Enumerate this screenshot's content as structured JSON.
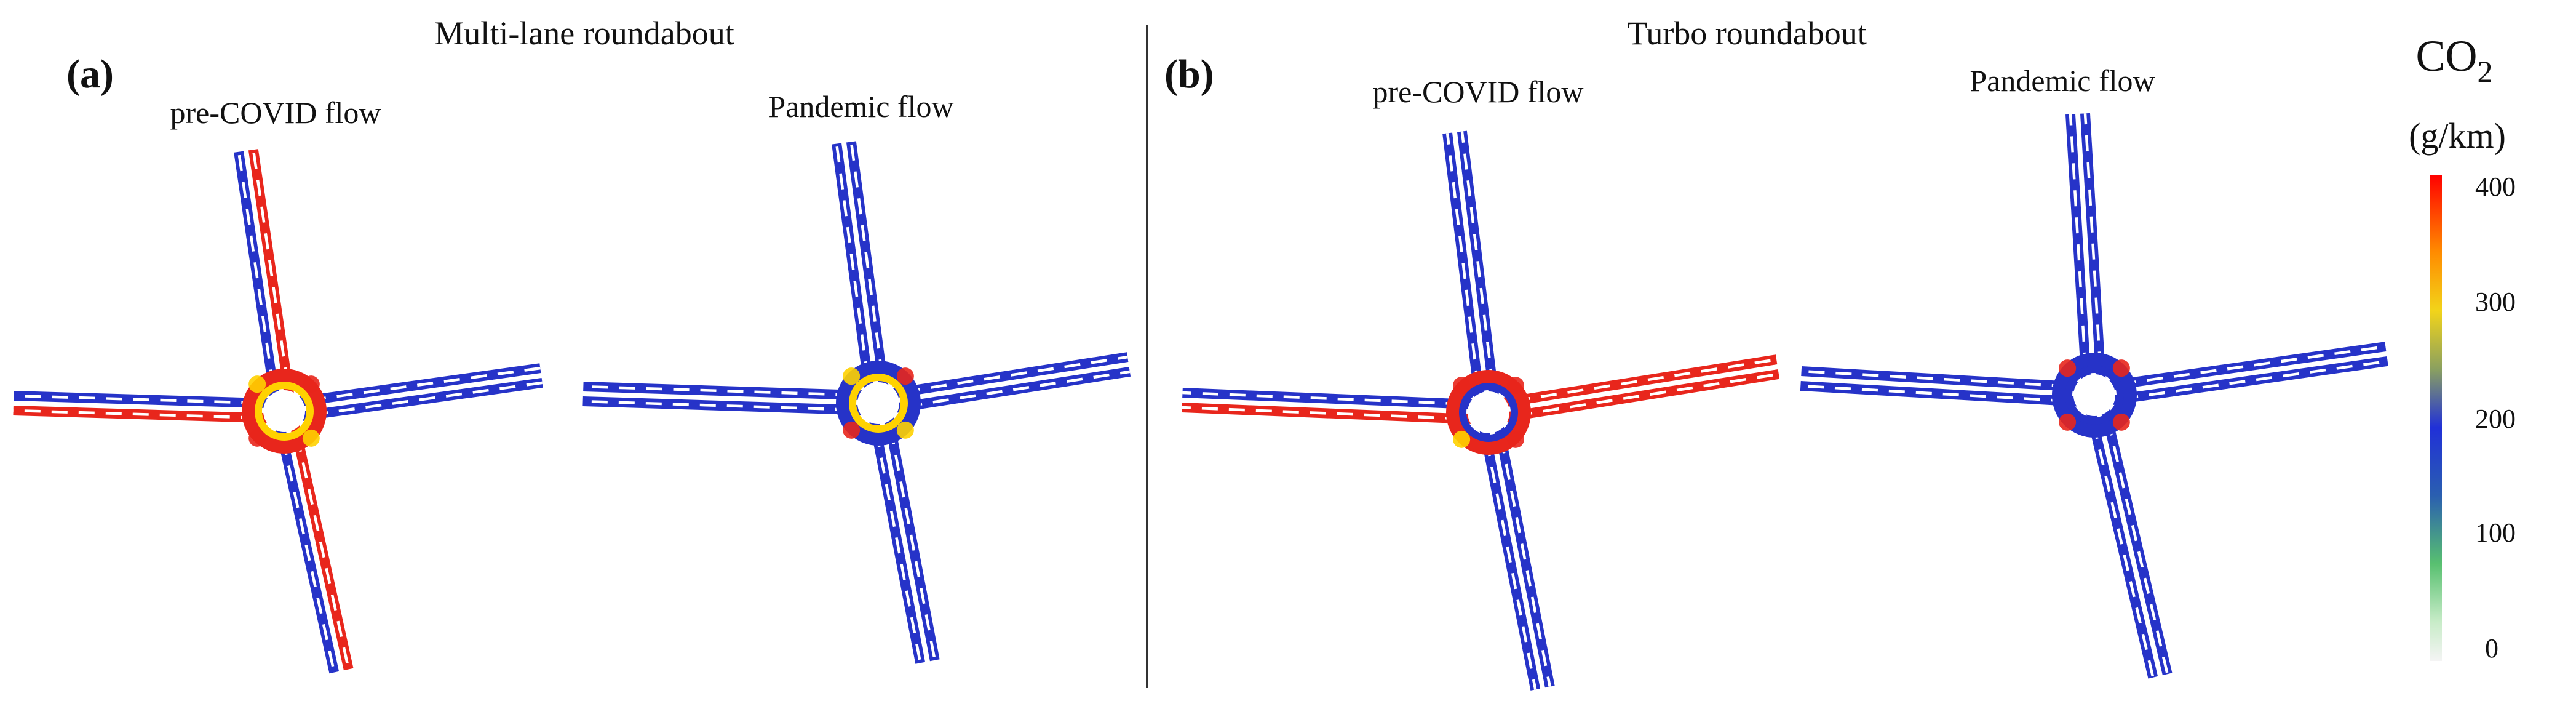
{
  "panels": [
    {
      "label": "(a)",
      "title": "Multi-lane roundabout",
      "left_caption": "pre-COVID flow",
      "right_caption": "Pandemic flow"
    },
    {
      "label": "(b)",
      "title": "Turbo roundabout",
      "left_caption": "pre-COVID flow",
      "right_caption": "Pandemic flow"
    }
  ],
  "colorbar": {
    "quantity": "CO",
    "subscript": "2",
    "unit": "(g/km)",
    "ticks": [
      "400",
      "300",
      "200",
      "100",
      "0"
    ],
    "gradient": [
      "#ff0000",
      "#ff8c00",
      "#ffd700",
      "#b4c84a",
      "#3333cc",
      "#1a2bd6",
      "#2e8b57",
      "#66cc66",
      "#c8e6c8",
      "#f5f5f5"
    ]
  },
  "colors": {
    "high": "#e8261c",
    "mid": "#ffd200",
    "low": "#2633c8",
    "edge": "#ffffff"
  }
}
